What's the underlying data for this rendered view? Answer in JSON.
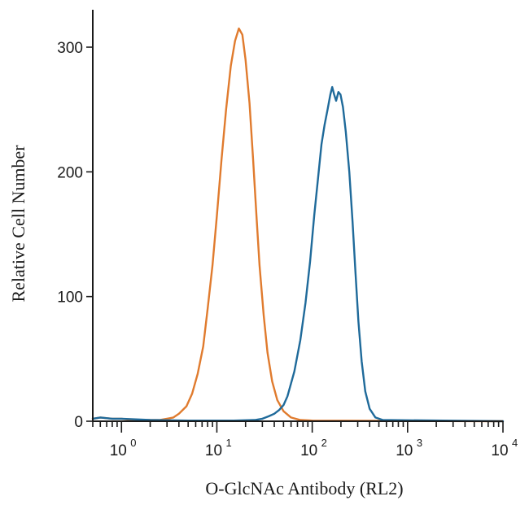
{
  "chart_data": {
    "type": "line",
    "xlabel": "O-GlcNAc Antibody (RL2)",
    "ylabel": "Relative Cell Number",
    "x_scale": "log",
    "xlim": [
      0.5,
      10000
    ],
    "ylim": [
      0,
      330
    ],
    "y_ticks": [
      {
        "value": 0,
        "label": "0"
      },
      {
        "value": 100,
        "label": "100"
      },
      {
        "value": 200,
        "label": "200"
      },
      {
        "value": 300,
        "label": "300"
      }
    ],
    "x_ticks": [
      {
        "value": 1,
        "base": "10",
        "exp": "0"
      },
      {
        "value": 10,
        "base": "10",
        "exp": "1"
      },
      {
        "value": 100,
        "base": "10",
        "exp": "2"
      },
      {
        "value": 1000,
        "base": "10",
        "exp": "3"
      },
      {
        "value": 10000,
        "base": "10",
        "exp": "4"
      }
    ],
    "series": [
      {
        "color": "#e07b2e",
        "points": [
          [
            0.5,
            2
          ],
          [
            0.6,
            3
          ],
          [
            0.8,
            2
          ],
          [
            1.0,
            2
          ],
          [
            1.3,
            1
          ],
          [
            1.6,
            1
          ],
          [
            2.0,
            1
          ],
          [
            2.5,
            1
          ],
          [
            3.0,
            2
          ],
          [
            3.5,
            3
          ],
          [
            4.0,
            6
          ],
          [
            4.8,
            12
          ],
          [
            5.5,
            22
          ],
          [
            6.3,
            38
          ],
          [
            7.2,
            60
          ],
          [
            8.0,
            90
          ],
          [
            9.0,
            125
          ],
          [
            10.0,
            165
          ],
          [
            11.2,
            210
          ],
          [
            12.5,
            250
          ],
          [
            14.0,
            285
          ],
          [
            15.5,
            305
          ],
          [
            17.0,
            315
          ],
          [
            18.5,
            310
          ],
          [
            20.0,
            290
          ],
          [
            22.0,
            255
          ],
          [
            24.0,
            210
          ],
          [
            26.0,
            165
          ],
          [
            28.0,
            125
          ],
          [
            31.0,
            85
          ],
          [
            34.0,
            55
          ],
          [
            38.0,
            32
          ],
          [
            43.0,
            17
          ],
          [
            50.0,
            8
          ],
          [
            60.0,
            3
          ],
          [
            75.0,
            1
          ],
          [
            100.0,
            0.5
          ],
          [
            10000,
            0
          ]
        ]
      },
      {
        "color": "#1f6a9a",
        "points": [
          [
            0.5,
            2
          ],
          [
            0.6,
            3
          ],
          [
            0.8,
            2
          ],
          [
            1.0,
            2
          ],
          [
            2.0,
            1
          ],
          [
            5.0,
            0.5
          ],
          [
            15.0,
            0.5
          ],
          [
            25.0,
            1
          ],
          [
            30.0,
            2
          ],
          [
            35.0,
            4
          ],
          [
            40.0,
            6
          ],
          [
            45.0,
            9
          ],
          [
            50.0,
            13
          ],
          [
            55.0,
            20
          ],
          [
            65.0,
            40
          ],
          [
            75.0,
            65
          ],
          [
            85.0,
            95
          ],
          [
            95.0,
            128
          ],
          [
            105.0,
            165
          ],
          [
            115.0,
            195
          ],
          [
            125.0,
            222
          ],
          [
            135.0,
            238
          ],
          [
            145.0,
            250
          ],
          [
            155.0,
            262
          ],
          [
            162.0,
            268
          ],
          [
            170.0,
            262
          ],
          [
            178.0,
            257
          ],
          [
            188.0,
            264
          ],
          [
            198.0,
            262
          ],
          [
            210.0,
            252
          ],
          [
            225.0,
            232
          ],
          [
            245.0,
            200
          ],
          [
            265.0,
            160
          ],
          [
            285.0,
            118
          ],
          [
            305.0,
            80
          ],
          [
            330.0,
            48
          ],
          [
            360.0,
            24
          ],
          [
            400.0,
            10
          ],
          [
            460.0,
            3
          ],
          [
            550.0,
            1
          ],
          [
            10000,
            0
          ]
        ]
      }
    ]
  }
}
